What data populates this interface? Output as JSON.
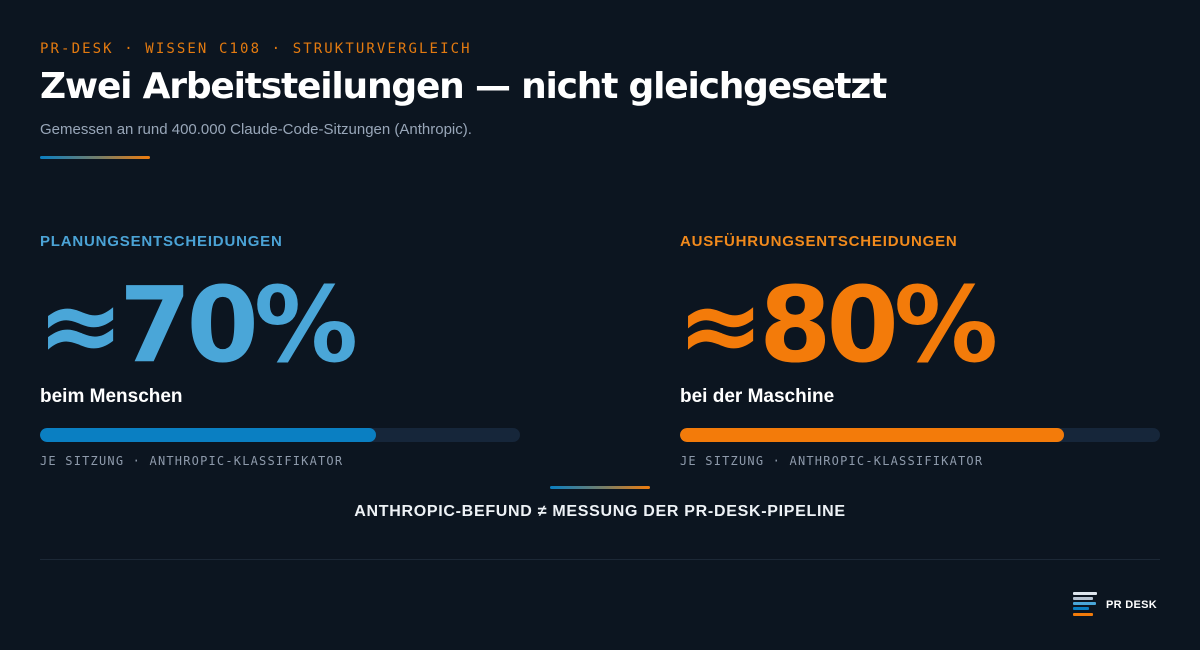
{
  "header": {
    "kicker": "PR-DESK · WISSEN C108 · STRUKTURVERGLEICH",
    "title": "Zwei Arbeitsteilungen — nicht gleichgesetzt",
    "subtitle": "Gemessen an rund 400.000 Claude-Code-Sitzungen (Anthropic)."
  },
  "stats": [
    {
      "label": "PLANUNGSENTSCHEIDUNGEN",
      "value": "≈70%",
      "value_percent": 70,
      "caption": "beim Menschen",
      "meta": "JE SITZUNG · ANTHROPIC-KLASSIFIKATOR",
      "accent_color": "#4aa6d8",
      "bar_color": "#0a7fc2"
    },
    {
      "label": "AUSFÜHRUNGSENTSCHEIDUNGEN",
      "value": "≈80%",
      "value_percent": 80,
      "caption": "bei der Maschine",
      "meta": "JE SITZUNG · ANTHROPIC-KLASSIFIKATOR",
      "accent_color": "#f37b0a",
      "bar_color": "#f37b0a"
    }
  ],
  "comparison_note": "ANTHROPIC-BEFUND ≠ MESSUNG DER PR-DESK-PIPELINE",
  "brand": {
    "name": "PR DESK",
    "logo_icon": "pr-desk-logo-icon"
  },
  "colors": {
    "background": "#0c1520",
    "kicker": "#e37a10",
    "track": "#16263a"
  }
}
